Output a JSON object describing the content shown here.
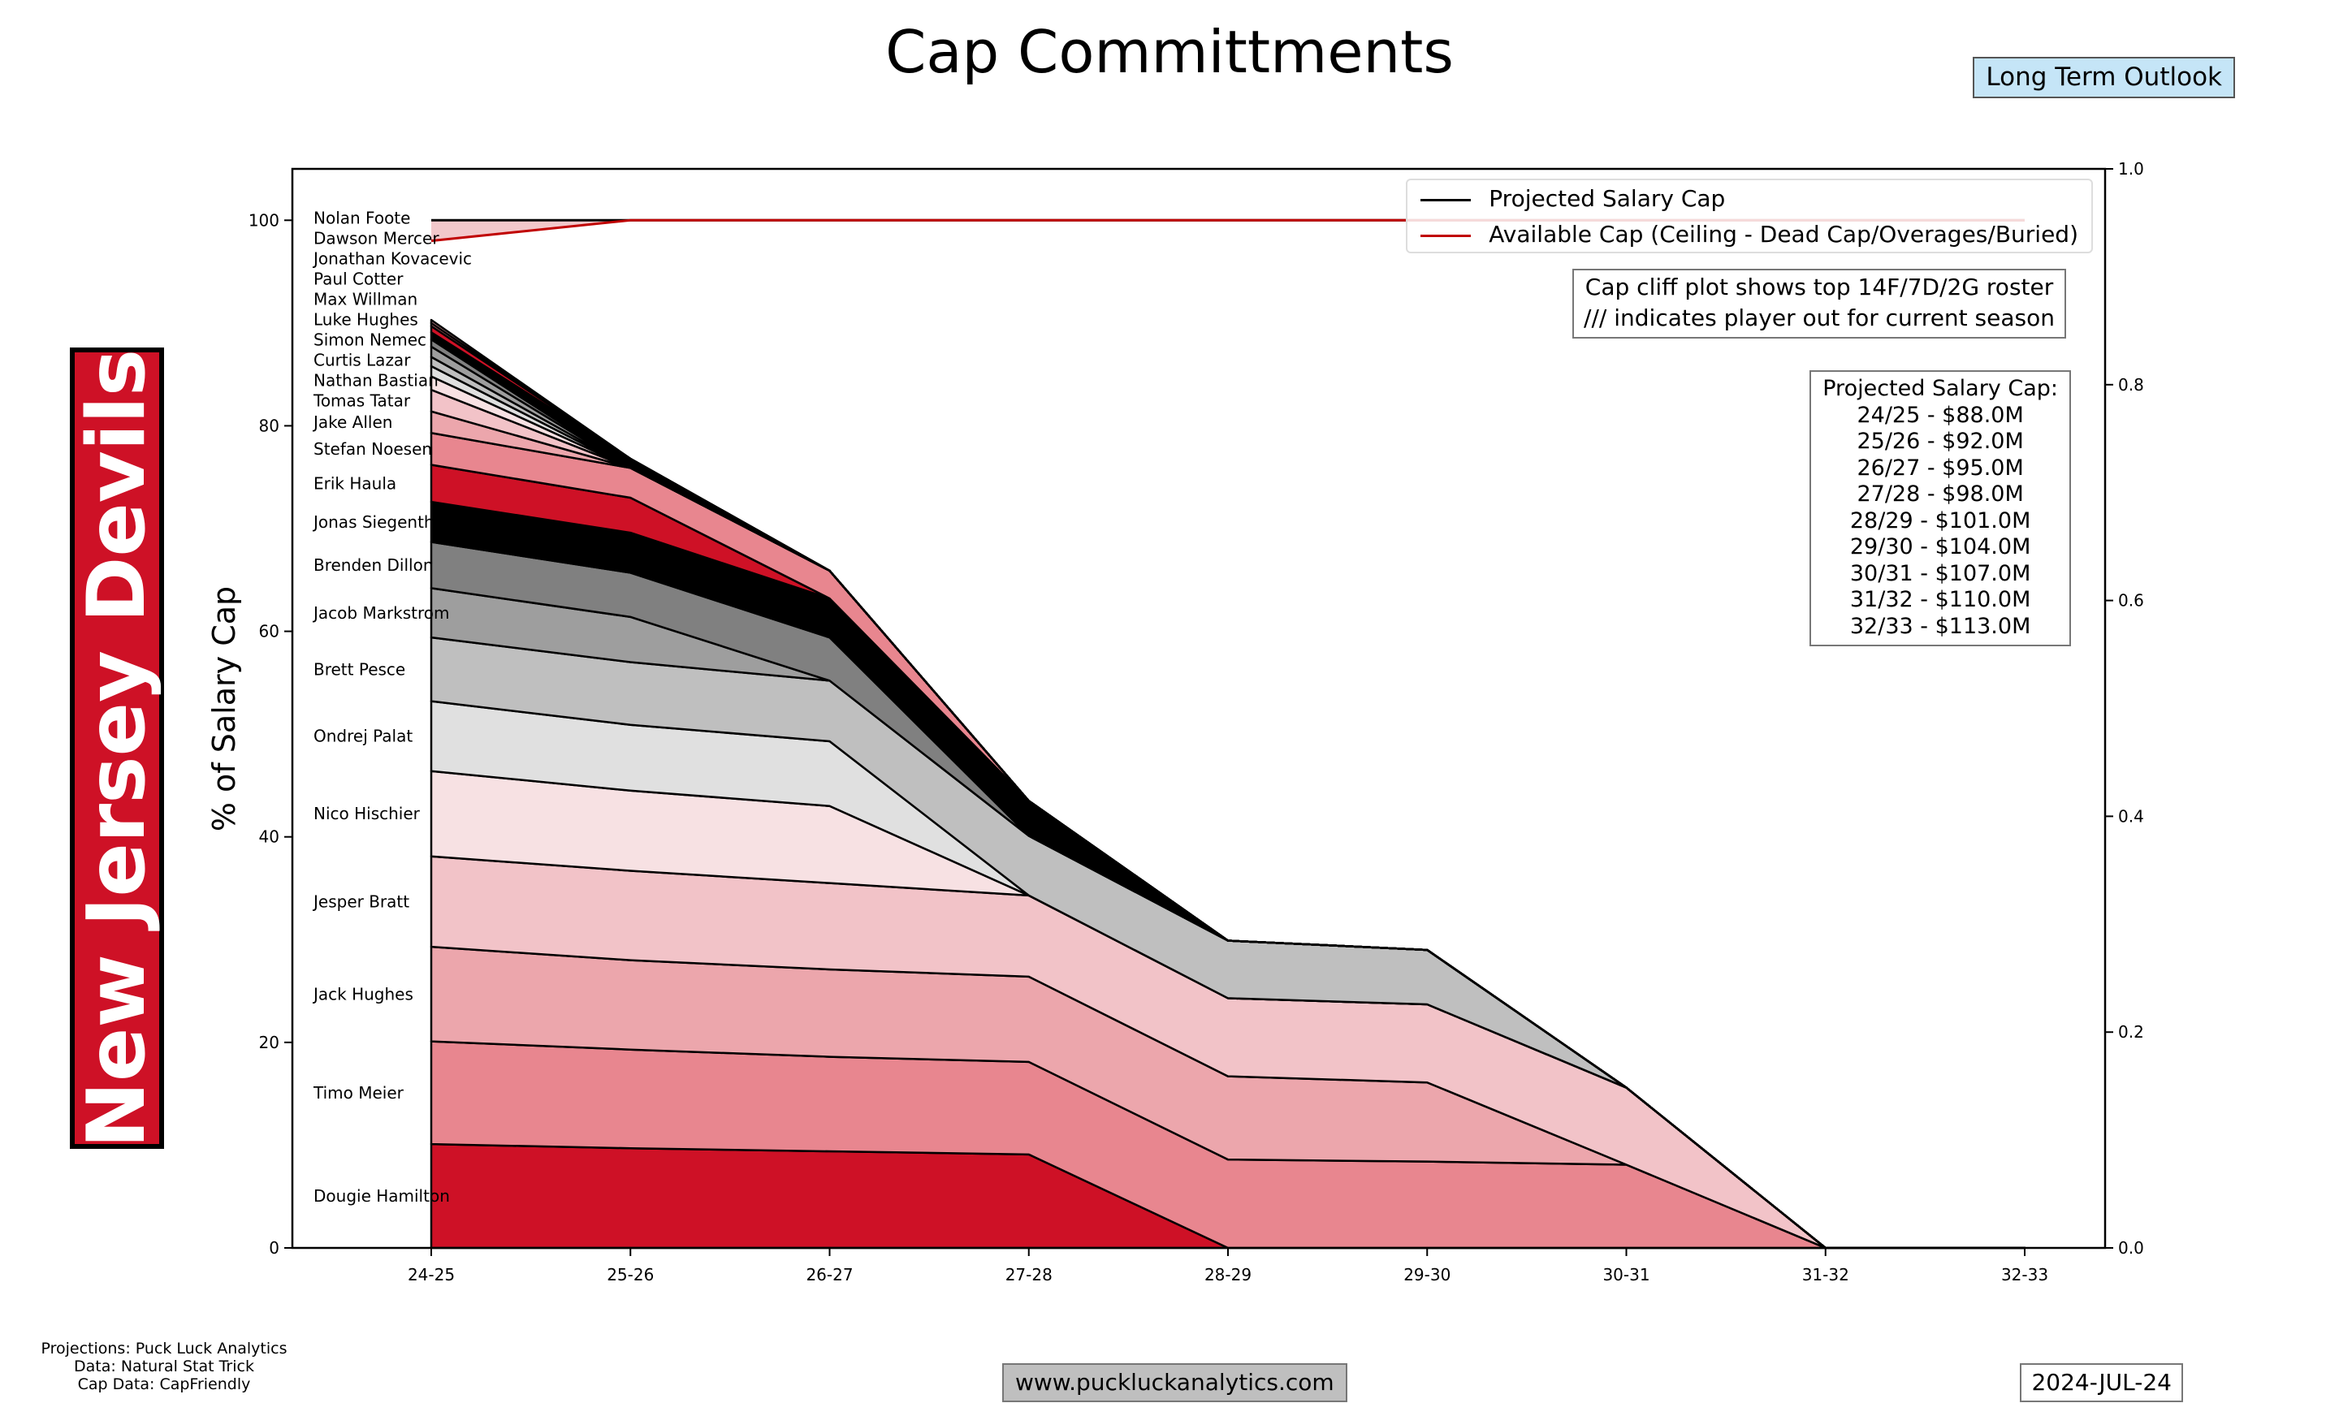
{
  "title": "Cap Committments",
  "outlook_label": "Long Term Outlook",
  "team_name": "New Jersey Devils",
  "legend": {
    "cap_label": "Projected Salary Cap",
    "available_label": "Available Cap (Ceiling - Dead Cap/Overages/Buried)"
  },
  "note": {
    "line1": "Cap cliff plot shows top 14F/7D/2G roster",
    "line2": "/// indicates player out for current season"
  },
  "cap_box": {
    "heading": "Projected Salary Cap:",
    "lines": [
      "24/25 - $88.0M",
      "25/26 - $92.0M",
      "26/27 - $95.0M",
      "27/28 - $98.0M",
      "28/29 - $101.0M",
      "29/30 - $104.0M",
      "30/31 - $107.0M",
      "31/32 - $110.0M",
      "32/33 - $113.0M"
    ]
  },
  "credits": [
    "Projections: Puck Luck Analytics",
    "Data: Natural Stat Trick",
    "Cap Data: CapFriendly"
  ],
  "website": "www.puckluckanalytics.com",
  "date": "2024-JUL-24",
  "colors": {
    "red": "#ce1126",
    "cap_line": "#000000",
    "available_line": "#c00000",
    "available_fill": "#f2c8cb"
  },
  "chart_data": {
    "type": "area",
    "title": "Cap Committments",
    "xlabel": "",
    "ylabel": "% of Salary Cap",
    "ylim": [
      0,
      105
    ],
    "y_ticks": [
      0,
      20,
      40,
      60,
      80,
      100
    ],
    "y2_ticks": [
      "0.0",
      "0.2",
      "0.4",
      "0.6",
      "0.8",
      "1.0"
    ],
    "categories": [
      "24-25",
      "25-26",
      "26-27",
      "27-28",
      "28-29",
      "29-30",
      "30-31",
      "31-32",
      "32-33"
    ],
    "projected_cap": [
      100,
      100,
      100,
      100,
      100,
      100,
      100,
      100,
      100
    ],
    "available_cap": [
      98,
      100,
      100,
      100,
      100,
      100,
      100,
      100,
      100
    ],
    "series": [
      {
        "name": "Dougie Hamilton",
        "color": "#ce1126",
        "values": [
          10.1,
          9.7,
          9.4,
          9.1,
          0,
          0,
          0,
          0,
          0
        ]
      },
      {
        "name": "Timo Meier",
        "color": "#e8868f",
        "values": [
          10.0,
          9.6,
          9.2,
          9.0,
          8.6,
          8.4,
          8.1,
          0,
          0
        ]
      },
      {
        "name": "Jack Hughes",
        "color": "#eca6ac",
        "values": [
          9.2,
          8.7,
          8.5,
          8.3,
          8.1,
          7.7,
          0,
          0,
          0
        ]
      },
      {
        "name": "Jesper Bratt",
        "color": "#f2c3c8",
        "values": [
          8.8,
          8.7,
          8.4,
          7.9,
          7.6,
          7.6,
          7.5,
          0,
          0
        ]
      },
      {
        "name": "Nico Hischier",
        "color": "#f7e1e3",
        "values": [
          8.3,
          7.8,
          7.5,
          0,
          0,
          0,
          0,
          0,
          0
        ]
      },
      {
        "name": "Ondrej Palat",
        "color": "#e0e0e0",
        "values": [
          6.8,
          6.4,
          6.3,
          0,
          0,
          0,
          0,
          0,
          0
        ]
      },
      {
        "name": "Brett Pesce",
        "color": "#bfbfbf",
        "values": [
          6.2,
          6.1,
          5.9,
          5.8,
          5.6,
          5.3,
          0,
          0,
          0
        ]
      },
      {
        "name": "Jacob Markstrom",
        "color": "#9e9e9e",
        "values": [
          4.8,
          4.4,
          0,
          0,
          0,
          0,
          0,
          0,
          0
        ]
      },
      {
        "name": "Brenden Dillon",
        "color": "#808080",
        "values": [
          4.5,
          4.3,
          4.2,
          0,
          0,
          0,
          0,
          0,
          0
        ]
      },
      {
        "name": "Jonas Siegenthaler",
        "color": "#000000",
        "values": [
          3.9,
          3.9,
          3.8,
          3.4,
          0,
          0,
          0,
          0,
          0
        ]
      },
      {
        "name": "Erik Haula",
        "color": "#ce1126",
        "values": [
          3.6,
          3.4,
          0,
          0,
          0,
          0,
          0,
          0,
          0
        ]
      },
      {
        "name": "Stefan Noesen",
        "color": "#e8868f",
        "values": [
          3.1,
          2.9,
          2.7,
          0,
          0,
          0,
          0,
          0,
          0
        ]
      },
      {
        "name": "Jake Allen",
        "color": "#eca6ac",
        "values": [
          2.1,
          0,
          0,
          0,
          0,
          0,
          0,
          0,
          0
        ]
      },
      {
        "name": "Tomas Tatar",
        "color": "#f2c3c8",
        "values": [
          2.1,
          0,
          0,
          0,
          0,
          0,
          0,
          0,
          0
        ]
      },
      {
        "name": "Nathan Bastian",
        "color": "#f7e1e3",
        "values": [
          1.3,
          0,
          0,
          0,
          0,
          0,
          0,
          0,
          0
        ]
      },
      {
        "name": "Curtis Lazar",
        "color": "#e0e0e0",
        "values": [
          1.0,
          0,
          0,
          0,
          0,
          0,
          0,
          0,
          0
        ]
      },
      {
        "name": "Simon Nemec",
        "color": "#bfbfbf",
        "values": [
          0.9,
          0,
          0,
          0,
          0,
          0,
          0,
          0,
          0
        ]
      },
      {
        "name": "Luke Hughes",
        "color": "#9e9e9e",
        "values": [
          1.0,
          0,
          0,
          0,
          0,
          0,
          0,
          0,
          0
        ]
      },
      {
        "name": "Max Willman",
        "color": "#808080",
        "values": [
          0.7,
          0,
          0,
          0,
          0,
          0,
          0,
          0,
          0
        ]
      },
      {
        "name": "Paul Cotter",
        "color": "#000000",
        "values": [
          0.7,
          0.9,
          0,
          0,
          0,
          0,
          0,
          0,
          0
        ]
      },
      {
        "name": "Jonathan Kovacevic",
        "color": "#ce1126",
        "values": [
          0.6,
          0,
          0,
          0,
          0,
          0,
          0,
          0,
          0
        ]
      },
      {
        "name": "Dawson Mercer",
        "color": "#e8868f",
        "values": [
          0.3,
          0,
          0,
          0,
          0,
          0,
          0,
          0,
          0
        ]
      },
      {
        "name": "Nolan Foote",
        "color": "#eca6ac",
        "values": [
          0.3,
          0,
          0,
          0,
          0,
          0,
          0,
          0,
          0
        ]
      }
    ]
  }
}
